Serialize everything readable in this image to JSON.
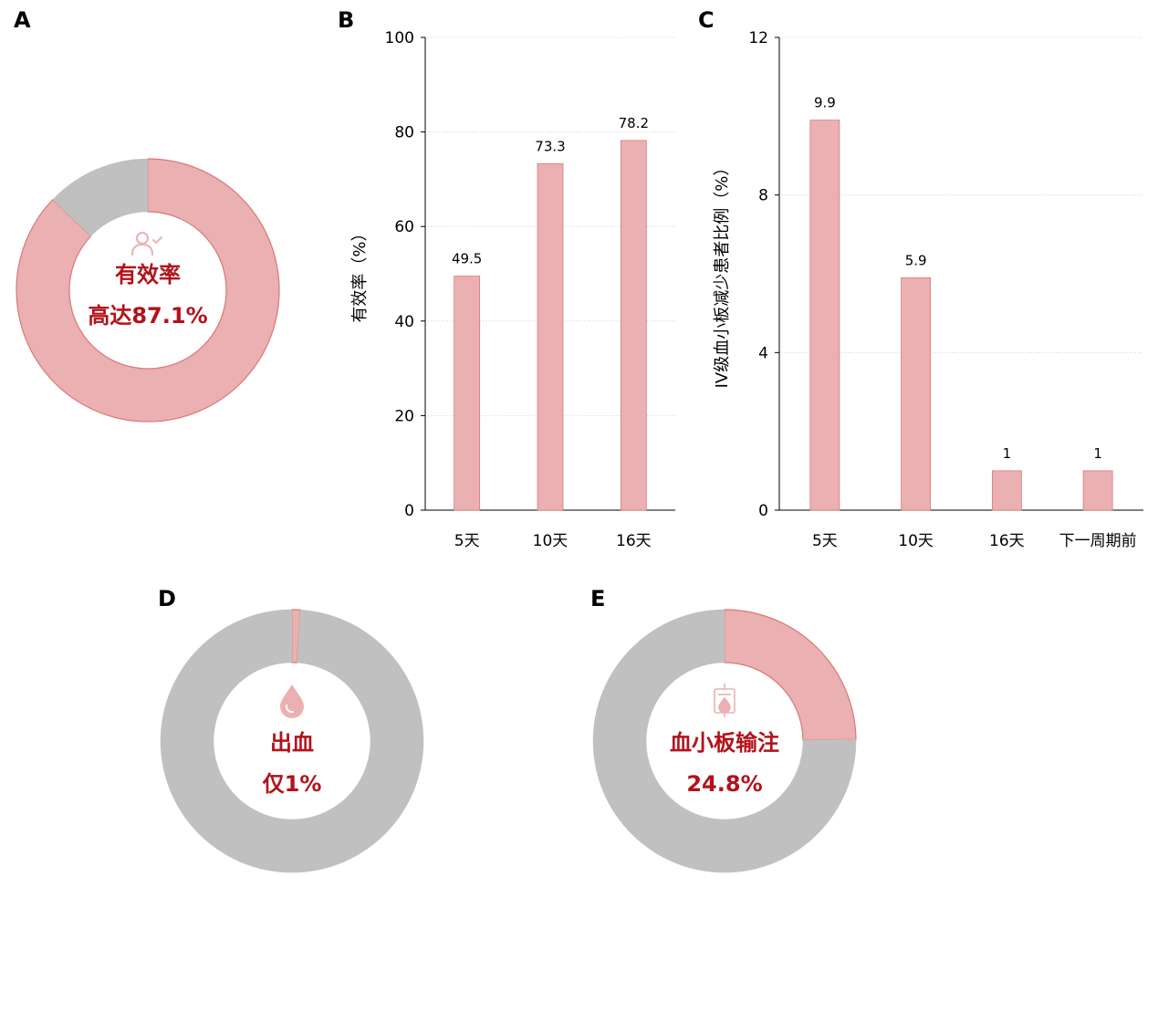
{
  "colors": {
    "accent": "#ebb0b1",
    "accent_stroke": "#d97878",
    "rest": "#c0c0c0",
    "center_text": "#b3121b",
    "icon": "#ebb0b1",
    "grid": "#cccccc"
  },
  "panels": {
    "A": {
      "label": "A",
      "icon": "user-check-icon",
      "text_line1": "有效率",
      "text_line2": "高达87.1%"
    },
    "B": {
      "label": "B"
    },
    "C": {
      "label": "C"
    },
    "D": {
      "label": "D",
      "icon": "blood-drop-icon",
      "text_line1": "出血",
      "text_line2": "仅1%"
    },
    "E": {
      "label": "E",
      "icon": "blood-bag-icon",
      "text_line1": "血小板输注",
      "text_line2": "24.8%"
    }
  },
  "chart_data": [
    {
      "panel": "A",
      "type": "pie",
      "style": "donut",
      "slices": [
        {
          "value": 87.1,
          "highlight": true
        },
        {
          "value": 12.9,
          "highlight": false
        }
      ]
    },
    {
      "panel": "B",
      "type": "bar",
      "categories": [
        "5天",
        "10天",
        "16天"
      ],
      "values": [
        49.5,
        73.3,
        78.2
      ],
      "value_labels": [
        "49.5",
        "73.3",
        "78.2"
      ],
      "ylabel": "有效率（%）",
      "ylim": [
        0,
        100
      ],
      "yticks": [
        0,
        20,
        40,
        60,
        80,
        100
      ],
      "grid": true
    },
    {
      "panel": "C",
      "type": "bar",
      "categories": [
        "5天",
        "10天",
        "16天",
        "下一周期前"
      ],
      "values": [
        9.9,
        5.9,
        1,
        1
      ],
      "value_labels": [
        "9.9",
        "5.9",
        "1",
        "1"
      ],
      "ylabel": "IV级血小板减少患者比例（%）",
      "ylim": [
        0,
        12
      ],
      "yticks": [
        0,
        4,
        8,
        12
      ],
      "grid": true
    },
    {
      "panel": "D",
      "type": "pie",
      "style": "donut",
      "slices": [
        {
          "value": 1,
          "highlight": true
        },
        {
          "value": 99,
          "highlight": false
        }
      ]
    },
    {
      "panel": "E",
      "type": "pie",
      "style": "donut",
      "slices": [
        {
          "value": 24.8,
          "highlight": true
        },
        {
          "value": 75.2,
          "highlight": false
        }
      ]
    }
  ]
}
